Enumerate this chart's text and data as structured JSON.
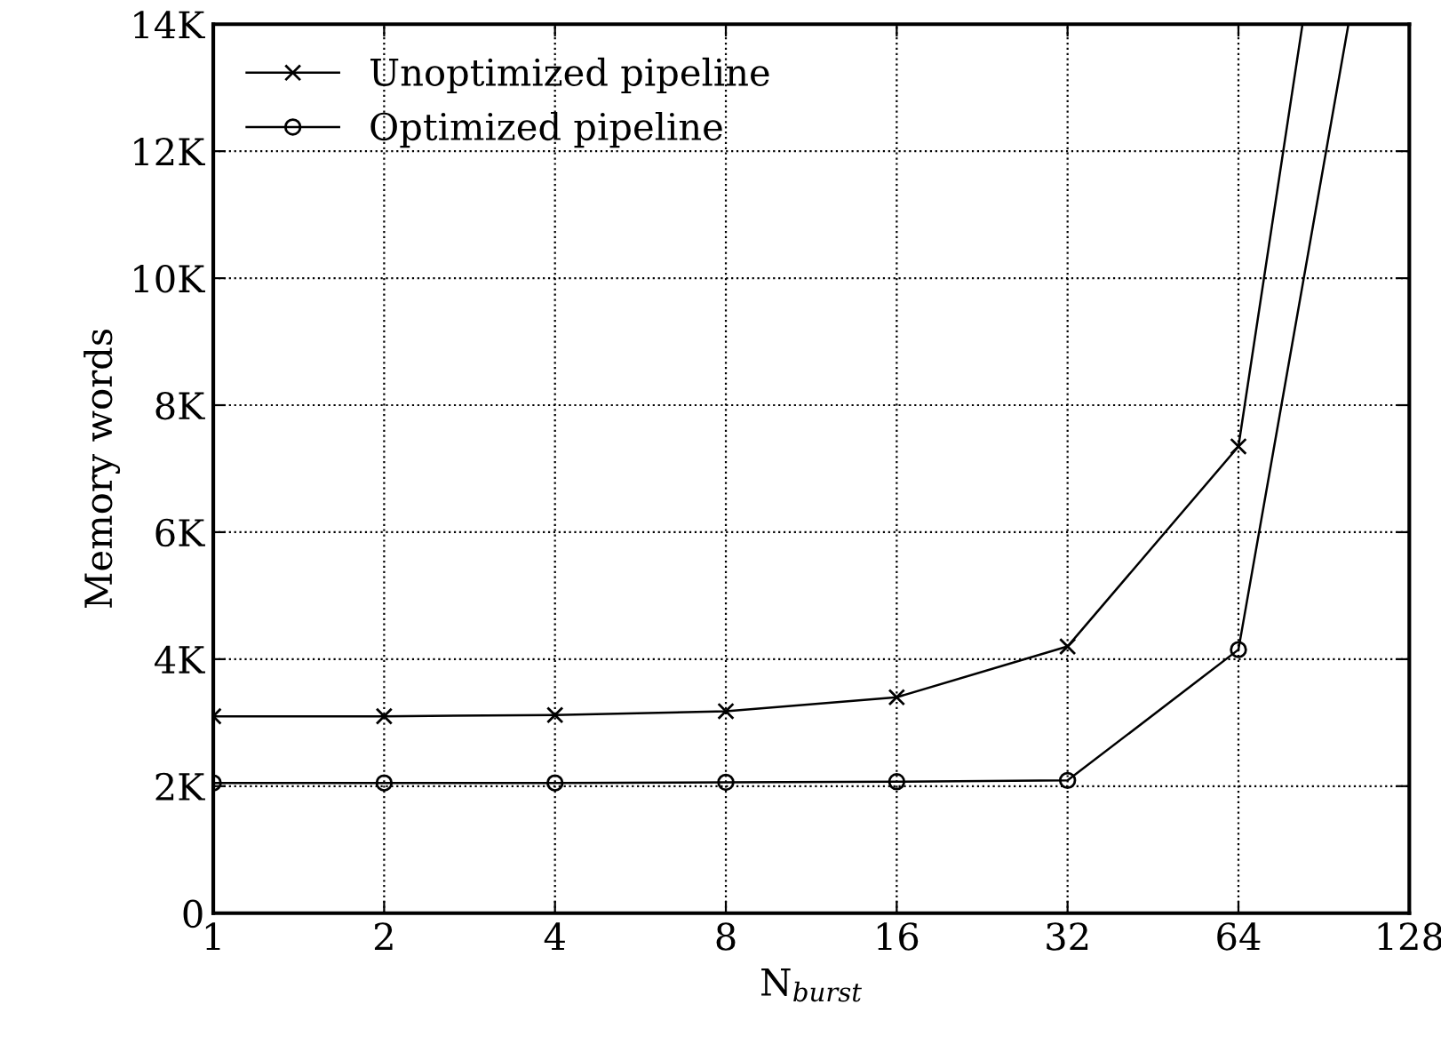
{
  "chart_data": {
    "type": "line",
    "xlabel": "N$_{burst}$",
    "ylabel": "Memory words",
    "log": "x",
    "x": [
      1,
      2,
      4,
      8,
      16,
      32,
      64
    ],
    "xlim": [
      1,
      128
    ],
    "xticks": [
      1,
      2,
      4,
      8,
      16,
      32,
      64,
      128
    ],
    "ylim": [
      0,
      14000
    ],
    "yticks": [
      {
        "value": 0,
        "label": "0"
      },
      {
        "value": 2000,
        "label": "2K"
      },
      {
        "value": 4000,
        "label": "4K"
      },
      {
        "value": 6000,
        "label": "6K"
      },
      {
        "value": 8000,
        "label": "8K"
      },
      {
        "value": 10000,
        "label": "10K"
      },
      {
        "value": 12000,
        "label": "12K"
      },
      {
        "value": 14000,
        "label": "14K"
      }
    ],
    "grid": true,
    "legend": "top left",
    "line_style": "solid",
    "series": [
      {
        "name": "Unoptimized pipeline",
        "color": "#000000",
        "marker": "cross",
        "values": [
          3100,
          3100,
          3120,
          3180,
          3400,
          4200,
          7350
        ]
      },
      {
        "name": "Optimized pipeline",
        "color": "#000000",
        "marker": "circle",
        "values": [
          2050,
          2050,
          2050,
          2060,
          2070,
          2090,
          4150
        ]
      },
      {
        "color": "#000000",
        "marker": "none",
        "x": [
          64,
          83
        ],
        "values": [
          7350,
          14000
        ]
      },
      {
        "color": "#000000",
        "marker": "none",
        "x": [
          64,
          100
        ],
        "values": [
          4150,
          14000
        ]
      }
    ]
  }
}
